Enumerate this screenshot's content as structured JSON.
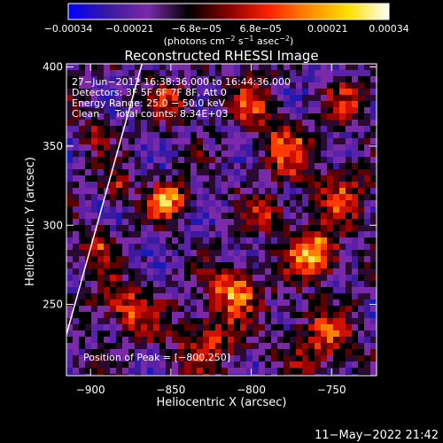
{
  "chart_data": {
    "type": "heatmap",
    "title": "Reconstructed RHESSI Image",
    "xlabel": "Heliocentric X (arcsec)",
    "ylabel": "Heliocentric Y (arcsec)",
    "xlim": [
      -915,
      -722
    ],
    "ylim": [
      205,
      402
    ],
    "x_ticks": [
      {
        "value": -900,
        "label": "−900"
      },
      {
        "value": -850,
        "label": "−850"
      },
      {
        "value": -800,
        "label": "−800"
      },
      {
        "value": -750,
        "label": "−750"
      }
    ],
    "y_ticks": [
      {
        "value": 250,
        "label": "250"
      },
      {
        "value": 300,
        "label": "300"
      },
      {
        "value": 350,
        "label": "350"
      },
      {
        "value": 400,
        "label": "400"
      }
    ],
    "colorbar": {
      "range": [
        -0.00034,
        0.00034
      ],
      "tick_values": [
        -0.00034,
        -0.00021,
        -6.8e-05,
        6.8e-05,
        0.00021,
        0.00034
      ],
      "tick_labels": [
        "−0.00034",
        "−0.00021",
        "−6.8e−05",
        "6.8e−05",
        "0.00021",
        "0.00034"
      ],
      "label_parts": [
        "(photons cm",
        "−2",
        " s",
        "−1",
        " asec",
        "−2",
        ")"
      ],
      "stops": [
        "#0000ff",
        "#3a1aa0",
        "#7a2aa8",
        "#000000",
        "#8a0000",
        "#ff2000",
        "#ff8a00",
        "#ffe000",
        "#ffffff"
      ]
    },
    "annotations": {
      "time_range": "27−Jun−2012 16:38:36.000 to 16:44:36.000",
      "detectors": "Detectors: 3F 5F 6F 7F 8F, Att 0",
      "energy": "Energy Range: 25.0 − 50.0 keV",
      "clean": "Clean     Total counts: 8.34E+03",
      "peak": "Position of Peak = [−800,250]"
    },
    "limb_line": {
      "x": [
        -915,
        -868
      ],
      "y": [
        231,
        402
      ]
    },
    "peak_position": [
      -800,
      250
    ]
  },
  "footer": {
    "timestamp": "11−May−2022 21:42"
  }
}
